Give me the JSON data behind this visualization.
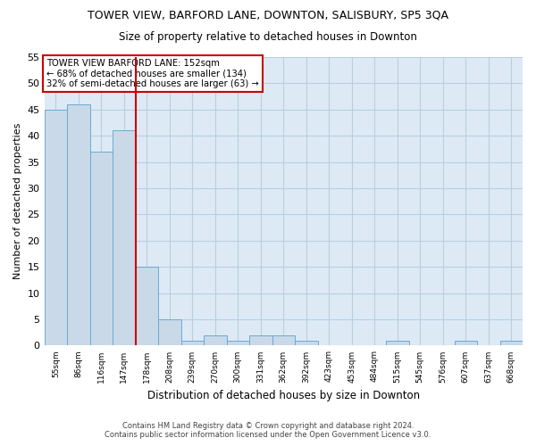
{
  "title": "TOWER VIEW, BARFORD LANE, DOWNTON, SALISBURY, SP5 3QA",
  "subtitle": "Size of property relative to detached houses in Downton",
  "xlabel": "Distribution of detached houses by size in Downton",
  "ylabel": "Number of detached properties",
  "footer_line1": "Contains HM Land Registry data © Crown copyright and database right 2024.",
  "footer_line2": "Contains public sector information licensed under the Open Government Licence v3.0.",
  "annotation_line1": "TOWER VIEW BARFORD LANE: 152sqm",
  "annotation_line2": "← 68% of detached houses are smaller (134)",
  "annotation_line3": "32% of semi-detached houses are larger (63) →",
  "bar_labels": [
    "55sqm",
    "86sqm",
    "116sqm",
    "147sqm",
    "178sqm",
    "208sqm",
    "239sqm",
    "270sqm",
    "300sqm",
    "331sqm",
    "362sqm",
    "392sqm",
    "423sqm",
    "453sqm",
    "484sqm",
    "515sqm",
    "545sqm",
    "576sqm",
    "607sqm",
    "637sqm",
    "668sqm"
  ],
  "bar_values": [
    45,
    46,
    37,
    41,
    15,
    5,
    1,
    2,
    1,
    2,
    2,
    1,
    0,
    0,
    0,
    1,
    0,
    0,
    1,
    0,
    1
  ],
  "bar_color": "#c9d9e8",
  "bar_edge_color": "#6aaad4",
  "vline_x_index": 3.5,
  "vline_color": "#cc0000",
  "annotation_box_color": "#ffffff",
  "annotation_box_edge_color": "#cc0000",
  "grid_color": "#b8cfe0",
  "plot_bg_color": "#ddeaf5",
  "fig_bg_color": "#ffffff",
  "ylim": [
    0,
    55
  ],
  "yticks": [
    0,
    5,
    10,
    15,
    20,
    25,
    30,
    35,
    40,
    45,
    50,
    55
  ]
}
